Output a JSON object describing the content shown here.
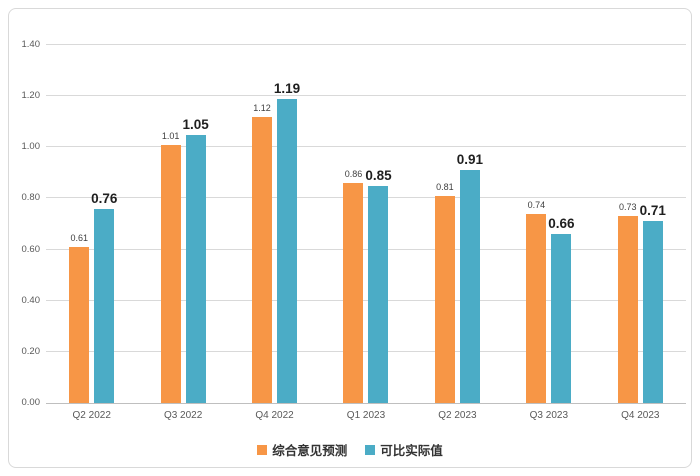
{
  "chart_data": {
    "type": "bar",
    "title": "",
    "categories": [
      "Q2 2022",
      "Q3 2022",
      "Q4 2022",
      "Q1 2023",
      "Q2 2023",
      "Q3 2023",
      "Q4 2023"
    ],
    "series": [
      {
        "name": "综合意见预测",
        "color": "#F79646",
        "label_style": "small",
        "values": [
          0.61,
          1.01,
          1.12,
          0.86,
          0.81,
          0.74,
          0.73
        ]
      },
      {
        "name": "可比实际值",
        "color": "#4BACC6",
        "label_style": "bold",
        "values": [
          0.76,
          1.05,
          1.19,
          0.85,
          0.91,
          0.66,
          0.71
        ]
      }
    ],
    "ylim": [
      0.0,
      1.4
    ],
    "yticks": [
      0.0,
      0.2,
      0.4,
      0.6,
      0.8,
      1.0,
      1.2,
      1.4
    ],
    "ytick_format_decimals": 2,
    "grid": "horizontal",
    "legend_position": "bottom",
    "value_labels": "above-bars",
    "colors": {
      "gridline": "#D9D9D9",
      "axis_line": "#BFBFBF",
      "tick_label": "#595959",
      "value_label_small": "#404040",
      "value_label_bold": "#1F1F1F",
      "frame_border": "#D9D9D9",
      "background": "#FFFFFF"
    }
  }
}
